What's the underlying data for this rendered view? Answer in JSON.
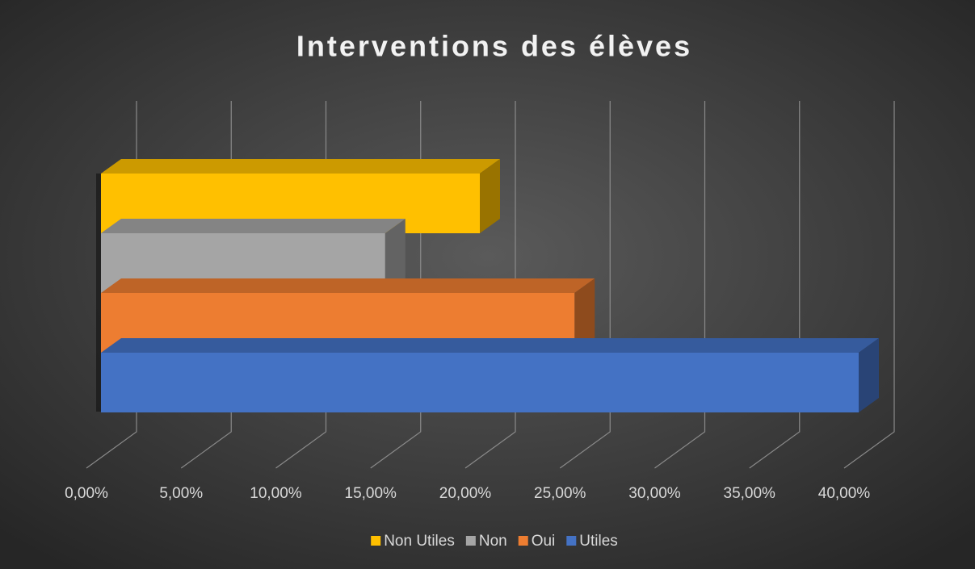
{
  "chart_data": {
    "type": "bar3d",
    "title": "Interventions des élèves",
    "orientation": "horizontal",
    "series": [
      {
        "name": "Non Utiles",
        "color": "#ffc000",
        "values": [
          20
        ]
      },
      {
        "name": "Non",
        "color": "#a5a5a5",
        "values": [
          15
        ]
      },
      {
        "name": "Oui",
        "color": "#ed7d31",
        "values": [
          25
        ]
      },
      {
        "name": "Utiles",
        "color": "#4472c4",
        "values": [
          40
        ]
      }
    ],
    "xlim": [
      0,
      40
    ],
    "xticks": [
      {
        "value": 0,
        "label": "0,00%"
      },
      {
        "value": 5,
        "label": "5,00%"
      },
      {
        "value": 10,
        "label": "10,00%"
      },
      {
        "value": 15,
        "label": "15,00%"
      },
      {
        "value": 20,
        "label": "20,00%"
      },
      {
        "value": 25,
        "label": "25,00%"
      },
      {
        "value": 30,
        "label": "30,00%"
      },
      {
        "value": 35,
        "label": "35,00%"
      },
      {
        "value": 40,
        "label": "40,00%"
      }
    ],
    "grid": true,
    "legend": "bottom"
  }
}
